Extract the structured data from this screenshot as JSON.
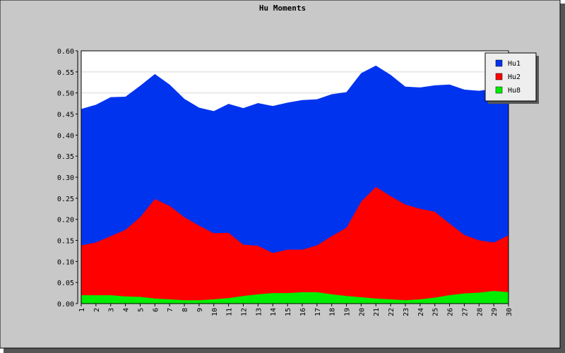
{
  "chart_data": {
    "type": "area",
    "stacked": false,
    "title": "Hu Moments",
    "categories": [
      "1",
      "2",
      "3",
      "4",
      "5",
      "6",
      "7",
      "8",
      "9",
      "10",
      "11",
      "12",
      "13",
      "14",
      "15",
      "16",
      "17",
      "18",
      "19",
      "20",
      "21",
      "22",
      "23",
      "24",
      "25",
      "26",
      "27",
      "28",
      "29",
      "30"
    ],
    "ylim": [
      0,
      0.6
    ],
    "yticks": [
      "0.00",
      "0.05",
      "0.10",
      "0.15",
      "0.20",
      "0.25",
      "0.30",
      "0.35",
      "0.40",
      "0.45",
      "0.50",
      "0.55",
      "0.60"
    ],
    "grid": true,
    "legend_position": "top-right",
    "series": [
      {
        "name": "Hu1",
        "color": "#0033ee",
        "values": [
          0.462,
          0.472,
          0.49,
          0.491,
          0.517,
          0.545,
          0.52,
          0.486,
          0.465,
          0.457,
          0.474,
          0.464,
          0.476,
          0.469,
          0.477,
          0.483,
          0.485,
          0.497,
          0.502,
          0.547,
          0.565,
          0.543,
          0.515,
          0.513,
          0.518,
          0.52,
          0.508,
          0.505,
          0.51,
          0.511
        ]
      },
      {
        "name": "Hu2",
        "color": "#ff0000",
        "values": [
          0.138,
          0.145,
          0.16,
          0.175,
          0.205,
          0.248,
          0.232,
          0.205,
          0.185,
          0.167,
          0.168,
          0.14,
          0.137,
          0.12,
          0.128,
          0.128,
          0.138,
          0.16,
          0.18,
          0.242,
          0.277,
          0.255,
          0.235,
          0.225,
          0.218,
          0.19,
          0.163,
          0.15,
          0.145,
          0.162
        ]
      },
      {
        "name": "Hu8",
        "color": "#00ee00",
        "values": [
          0.02,
          0.02,
          0.02,
          0.017,
          0.016,
          0.012,
          0.01,
          0.008,
          0.008,
          0.01,
          0.013,
          0.018,
          0.022,
          0.025,
          0.025,
          0.027,
          0.027,
          0.022,
          0.018,
          0.015,
          0.012,
          0.01,
          0.008,
          0.01,
          0.014,
          0.02,
          0.024,
          0.026,
          0.03,
          0.027
        ]
      }
    ]
  }
}
